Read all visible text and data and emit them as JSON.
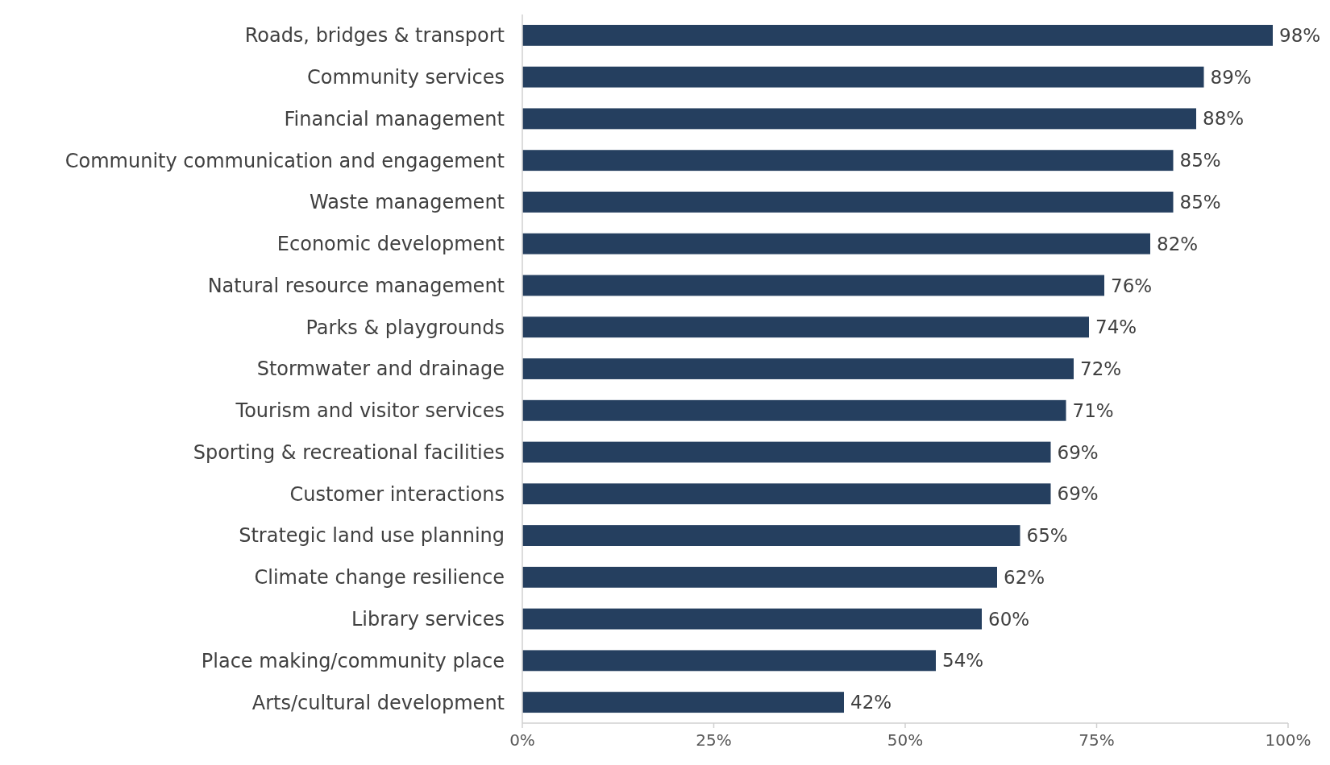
{
  "chart_data": {
    "type": "bar",
    "orientation": "horizontal",
    "categories": [
      "Roads, bridges & transport",
      "Community services",
      "Financial management",
      "Community communication and engagement",
      "Waste management",
      "Economic development",
      "Natural resource management",
      "Parks & playgrounds",
      "Stormwater and drainage",
      "Tourism and visitor services",
      "Sporting & recreational facilities",
      "Customer interactions",
      "Strategic land use planning",
      "Climate change resilience",
      "Library services",
      "Place making/community place",
      "Arts/cultural development"
    ],
    "values": [
      98,
      89,
      88,
      85,
      85,
      82,
      76,
      74,
      72,
      71,
      69,
      69,
      65,
      62,
      60,
      54,
      42
    ],
    "value_labels": [
      "98%",
      "89%",
      "88%",
      "85%",
      "85%",
      "82%",
      "76%",
      "74%",
      "72%",
      "71%",
      "69%",
      "69%",
      "65%",
      "62%",
      "60%",
      "54%",
      "42%"
    ],
    "color": "#253f5f",
    "xlim": [
      0,
      100
    ],
    "xticks": [
      {
        "value": 0,
        "label": "0%"
      },
      {
        "value": 25,
        "label": "25%"
      },
      {
        "value": 50,
        "label": "50%"
      },
      {
        "value": 75,
        "label": "75%"
      },
      {
        "value": 100,
        "label": "100%"
      }
    ],
    "grid": false
  }
}
